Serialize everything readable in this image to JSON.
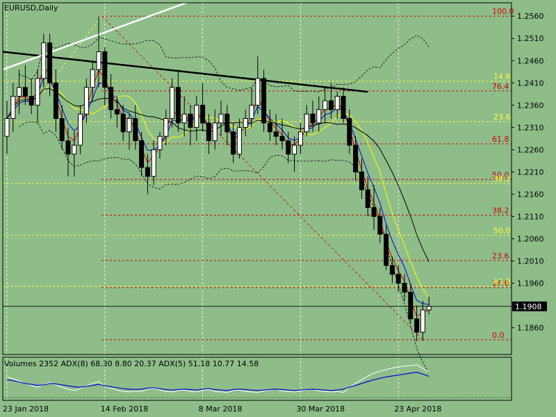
{
  "window": {
    "symbol_title": "EURUSD,Daily",
    "indicator_title": "Volumes 2352 ADX(8) 68.30 8.80 20.37 ADX(5) 51.18 10.77 14.58"
  },
  "colors": {
    "background": "#8fbd8a",
    "grid": "#ffffff",
    "candle": "#000000",
    "ma_red": "#cc0000",
    "ma_blue": "#0000cc",
    "ma_yellow": "#ffff00",
    "ma_black": "#000000",
    "fib_red": "#cc0000",
    "fib_yellow": "#ffff33",
    "bollinger": "#000000",
    "adx_blue": "#0000cc",
    "adx_white": "#ffffff"
  },
  "chart_data": {
    "type": "candlestick",
    "ylim": [
      1.18,
      1.259
    ],
    "yticks": [
      "1.2560",
      "1.2510",
      "1.2460",
      "1.2410",
      "1.2360",
      "1.2310",
      "1.2260",
      "1.2210",
      "1.2160",
      "1.2110",
      "1.2060",
      "1.2010",
      "1.1960",
      "1.1860"
    ],
    "current_price": "1.1908",
    "xticks": [
      {
        "label": "23 Jan 2018",
        "i": 0
      },
      {
        "label": "14 Feb 2018",
        "i": 16
      },
      {
        "label": "8 Mar 2018",
        "i": 32
      },
      {
        "label": "30 Mar 2018",
        "i": 48
      },
      {
        "label": "23 Apr 2018",
        "i": 64
      }
    ],
    "ohlc": [
      [
        1.229,
        1.237,
        1.225,
        1.233
      ],
      [
        1.233,
        1.241,
        1.23,
        1.238
      ],
      [
        1.238,
        1.244,
        1.234,
        1.24
      ],
      [
        1.24,
        1.245,
        1.236,
        1.238
      ],
      [
        1.238,
        1.242,
        1.234,
        1.236
      ],
      [
        1.236,
        1.244,
        1.232,
        1.242
      ],
      [
        1.242,
        1.252,
        1.24,
        1.25
      ],
      [
        1.25,
        1.252,
        1.238,
        1.241
      ],
      [
        1.241,
        1.244,
        1.23,
        1.233
      ],
      [
        1.233,
        1.236,
        1.226,
        1.228
      ],
      [
        1.228,
        1.231,
        1.22,
        1.225
      ],
      [
        1.225,
        1.23,
        1.22,
        1.227
      ],
      [
        1.227,
        1.236,
        1.225,
        1.234
      ],
      [
        1.234,
        1.242,
        1.232,
        1.24
      ],
      [
        1.24,
        1.246,
        1.237,
        1.244
      ],
      [
        1.244,
        1.256,
        1.24,
        1.248
      ],
      [
        1.248,
        1.249,
        1.236,
        1.24
      ],
      [
        1.24,
        1.243,
        1.233,
        1.235
      ],
      [
        1.235,
        1.238,
        1.231,
        1.234
      ],
      [
        1.234,
        1.236,
        1.228,
        1.23
      ],
      [
        1.23,
        1.234,
        1.226,
        1.233
      ],
      [
        1.233,
        1.236,
        1.226,
        1.228
      ],
      [
        1.228,
        1.23,
        1.22,
        1.222
      ],
      [
        1.222,
        1.225,
        1.216,
        1.22
      ],
      [
        1.22,
        1.228,
        1.218,
        1.226
      ],
      [
        1.226,
        1.23,
        1.224,
        1.229
      ],
      [
        1.229,
        1.235,
        1.227,
        1.233
      ],
      [
        1.233,
        1.242,
        1.231,
        1.24
      ],
      [
        1.24,
        1.244,
        1.23,
        1.232
      ],
      [
        1.232,
        1.238,
        1.229,
        1.234
      ],
      [
        1.234,
        1.236,
        1.227,
        1.231
      ],
      [
        1.231,
        1.238,
        1.228,
        1.236
      ],
      [
        1.236,
        1.241,
        1.23,
        1.232
      ],
      [
        1.232,
        1.234,
        1.225,
        1.228
      ],
      [
        1.228,
        1.235,
        1.226,
        1.232
      ],
      [
        1.232,
        1.237,
        1.229,
        1.234
      ],
      [
        1.234,
        1.236,
        1.227,
        1.23
      ],
      [
        1.23,
        1.232,
        1.223,
        1.225
      ],
      [
        1.225,
        1.233,
        1.224,
        1.231
      ],
      [
        1.231,
        1.235,
        1.229,
        1.233
      ],
      [
        1.233,
        1.24,
        1.231,
        1.236
      ],
      [
        1.236,
        1.247,
        1.234,
        1.242
      ],
      [
        1.242,
        1.244,
        1.23,
        1.232
      ],
      [
        1.232,
        1.235,
        1.228,
        1.23
      ],
      [
        1.23,
        1.234,
        1.227,
        1.229
      ],
      [
        1.229,
        1.233,
        1.226,
        1.228
      ],
      [
        1.228,
        1.23,
        1.223,
        1.225
      ],
      [
        1.225,
        1.229,
        1.221,
        1.227
      ],
      [
        1.227,
        1.232,
        1.225,
        1.23
      ],
      [
        1.23,
        1.236,
        1.229,
        1.234
      ],
      [
        1.234,
        1.237,
        1.23,
        1.232
      ],
      [
        1.232,
        1.238,
        1.23,
        1.235
      ],
      [
        1.235,
        1.24,
        1.232,
        1.237
      ],
      [
        1.237,
        1.241,
        1.233,
        1.235
      ],
      [
        1.235,
        1.239,
        1.233,
        1.238
      ],
      [
        1.238,
        1.24,
        1.232,
        1.233
      ],
      [
        1.233,
        1.235,
        1.225,
        1.227
      ],
      [
        1.227,
        1.229,
        1.219,
        1.221
      ],
      [
        1.221,
        1.224,
        1.215,
        1.217
      ],
      [
        1.217,
        1.22,
        1.211,
        1.213
      ],
      [
        1.213,
        1.218,
        1.208,
        1.211
      ],
      [
        1.211,
        1.213,
        1.205,
        1.207
      ],
      [
        1.207,
        1.209,
        1.199,
        1.2
      ],
      [
        1.2,
        1.202,
        1.196,
        1.198
      ],
      [
        1.198,
        1.2,
        1.194,
        1.196
      ],
      [
        1.196,
        1.198,
        1.192,
        1.194
      ],
      [
        1.194,
        1.196,
        1.187,
        1.188
      ],
      [
        1.188,
        1.191,
        1.183,
        1.185
      ],
      [
        1.185,
        1.192,
        1.183,
        1.19
      ],
      [
        1.19,
        1.193,
        1.189,
        1.1908
      ]
    ],
    "fib_red": [
      {
        "label": "100.0",
        "value": 1.256
      },
      {
        "label": "76.4",
        "value": 1.2392
      },
      {
        "label": "61.8",
        "value": 1.2273
      },
      {
        "label": "50.0",
        "value": 1.2193
      },
      {
        "label": "38.2",
        "value": 1.2113
      },
      {
        "label": "23.6",
        "value": 1.2011
      },
      {
        "label": "14.6",
        "value": 1.195
      },
      {
        "label": "0.0",
        "value": 1.1833
      }
    ],
    "fib_yellow": [
      {
        "label": "14.6",
        "value": 1.2414
      },
      {
        "label": "23.6",
        "value": 1.2323
      },
      {
        "label": "38.2",
        "value": 1.2184
      },
      {
        "label": "50.0",
        "value": 1.2068
      },
      {
        "label": "61.8",
        "value": 1.1953
      }
    ],
    "adx_main": [
      38,
      36,
      33,
      30,
      28,
      26,
      27,
      30,
      29,
      27,
      25,
      23,
      22,
      24,
      26,
      28,
      25,
      23,
      21,
      19,
      18,
      17,
      18,
      20,
      21,
      19,
      17,
      16,
      17,
      18,
      17,
      16,
      18,
      19,
      17,
      16,
      15,
      17,
      18,
      17,
      16,
      15,
      16,
      17,
      18,
      17,
      16,
      15,
      16,
      17,
      18,
      17,
      16,
      15,
      16,
      18,
      22,
      26,
      30,
      34,
      38,
      41,
      44,
      46,
      48,
      50,
      52,
      54,
      50,
      45
    ],
    "adx_plus": [
      44,
      40,
      35,
      30,
      26,
      22,
      28,
      32,
      27,
      22,
      18,
      15,
      19,
      25,
      30,
      34,
      24,
      20,
      16,
      13,
      12,
      14,
      13,
      18,
      20,
      16,
      13,
      12,
      15,
      16,
      13,
      12,
      16,
      17,
      13,
      12,
      11,
      15,
      16,
      13,
      12,
      11,
      14,
      16,
      18,
      14,
      13,
      12,
      14,
      16,
      18,
      14,
      13,
      12,
      13,
      11,
      22,
      30,
      38,
      46,
      52,
      56,
      60,
      63,
      65,
      67,
      68,
      70,
      62,
      54
    ]
  }
}
